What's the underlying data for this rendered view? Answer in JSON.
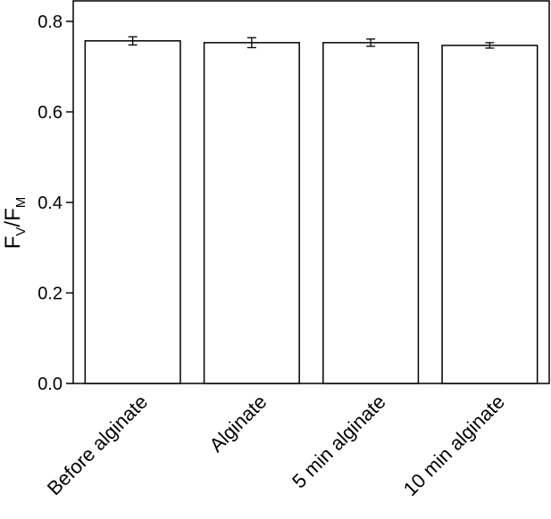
{
  "chart_data": {
    "type": "bar",
    "categories": [
      "Before alginate",
      "Alginate",
      "5 min alginate",
      "10 min alginate"
    ],
    "values": [
      0.757,
      0.753,
      0.753,
      0.747
    ],
    "errors": [
      0.009,
      0.011,
      0.008,
      0.006
    ],
    "ylabel": {
      "main1": "F",
      "sub1": "V",
      "slash": "/",
      "main2": "F",
      "sub2": "M"
    },
    "ylim": [
      0,
      0.8
    ],
    "yticks": [
      "0.0",
      "0.2",
      "0.4",
      "0.6",
      "0.8"
    ],
    "ytick_values": [
      0,
      0.2,
      0.4,
      0.6,
      0.8
    ],
    "grid": false,
    "legend": "none",
    "bar_fill": "#ffffff",
    "bar_stroke": "#000000"
  }
}
